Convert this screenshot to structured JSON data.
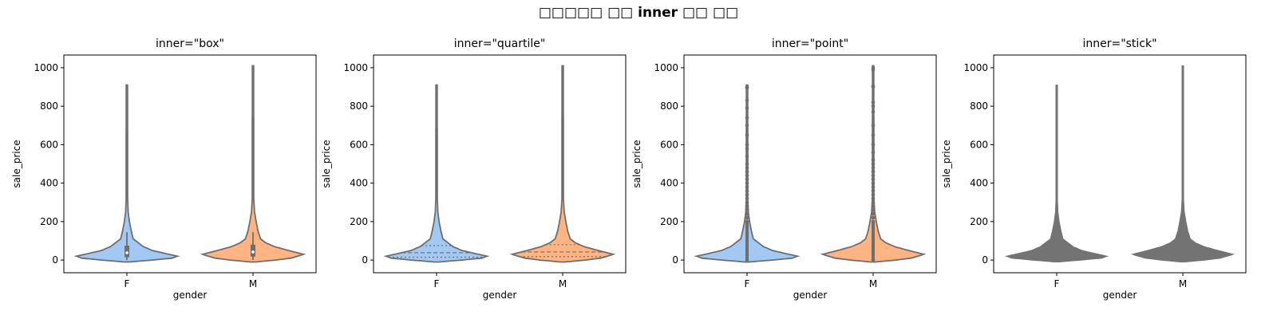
{
  "figure": {
    "suptitle": "□□□□□ □□ inner □□ □□"
  },
  "chart_data": [
    {
      "type": "violin",
      "title": "inner=\"box\"",
      "inner": "box",
      "xlabel": "gender",
      "ylabel": "sale_price",
      "categories": [
        "F",
        "M"
      ],
      "ylim": [
        -66,
        1066
      ],
      "yticks": [
        0,
        200,
        400,
        600,
        800,
        1000
      ],
      "colors": [
        "#a1c9f4",
        "#ffb482"
      ]
    },
    {
      "type": "violin",
      "title": "inner=\"quartile\"",
      "inner": "quartile",
      "xlabel": "gender",
      "ylabel": "sale_price",
      "categories": [
        "F",
        "M"
      ],
      "ylim": [
        -66,
        1066
      ],
      "yticks": [
        0,
        200,
        400,
        600,
        800,
        1000
      ],
      "colors": [
        "#a1c9f4",
        "#ffb482"
      ]
    },
    {
      "type": "violin",
      "title": "inner=\"point\"",
      "inner": "point",
      "xlabel": "gender",
      "ylabel": "sale_price",
      "categories": [
        "F",
        "M"
      ],
      "ylim": [
        -66,
        1066
      ],
      "yticks": [
        0,
        200,
        400,
        600,
        800,
        1000
      ],
      "colors": [
        "#a1c9f4",
        "#ffb482"
      ]
    },
    {
      "type": "violin",
      "title": "inner=\"stick\"",
      "inner": "stick",
      "xlabel": "gender",
      "ylabel": "sale_price",
      "categories": [
        "F",
        "M"
      ],
      "ylim": [
        -66,
        1066
      ],
      "yticks": [
        0,
        200,
        400,
        600,
        800,
        1000
      ],
      "colors": [
        "#737373",
        "#737373"
      ]
    }
  ],
  "distributions": {
    "F": {
      "min": -10,
      "max": 910,
      "q1": 15,
      "median": 38,
      "q3": 75,
      "whisker_low": 0,
      "whisker_high": 145,
      "density": [
        [
          -10,
          0.02
        ],
        [
          0,
          0.2
        ],
        [
          10,
          0.36
        ],
        [
          20,
          0.4
        ],
        [
          30,
          0.33
        ],
        [
          50,
          0.2
        ],
        [
          70,
          0.13
        ],
        [
          90,
          0.09
        ],
        [
          110,
          0.05
        ],
        [
          150,
          0.035
        ],
        [
          200,
          0.02
        ],
        [
          250,
          0.01
        ],
        [
          320,
          0.006
        ],
        [
          910,
          0.005
        ]
      ]
    },
    "M": {
      "min": -10,
      "max": 1010,
      "q1": 18,
      "median": 42,
      "q3": 80,
      "whisker_low": 0,
      "whisker_high": 145,
      "density": [
        [
          -10,
          0.02
        ],
        [
          0,
          0.18
        ],
        [
          10,
          0.3
        ],
        [
          25,
          0.38
        ],
        [
          30,
          0.4
        ],
        [
          50,
          0.28
        ],
        [
          70,
          0.17
        ],
        [
          90,
          0.1
        ],
        [
          110,
          0.06
        ],
        [
          150,
          0.04
        ],
        [
          200,
          0.025
        ],
        [
          250,
          0.012
        ],
        [
          320,
          0.006
        ],
        [
          1010,
          0.005
        ]
      ]
    }
  },
  "point_outliers": {
    "F": [
      900,
      895,
      830,
      790,
      740,
      700,
      650,
      600,
      580,
      540,
      500,
      480,
      460,
      440,
      420,
      400,
      380,
      360,
      340,
      320,
      300,
      280,
      260,
      240,
      220,
      200
    ],
    "M": [
      1000,
      990,
      905,
      900,
      820,
      800,
      770,
      700,
      650,
      600,
      560,
      520,
      500,
      480,
      460,
      440,
      420,
      400,
      380,
      360,
      340,
      320,
      300,
      280,
      260,
      240,
      220,
      200
    ]
  }
}
